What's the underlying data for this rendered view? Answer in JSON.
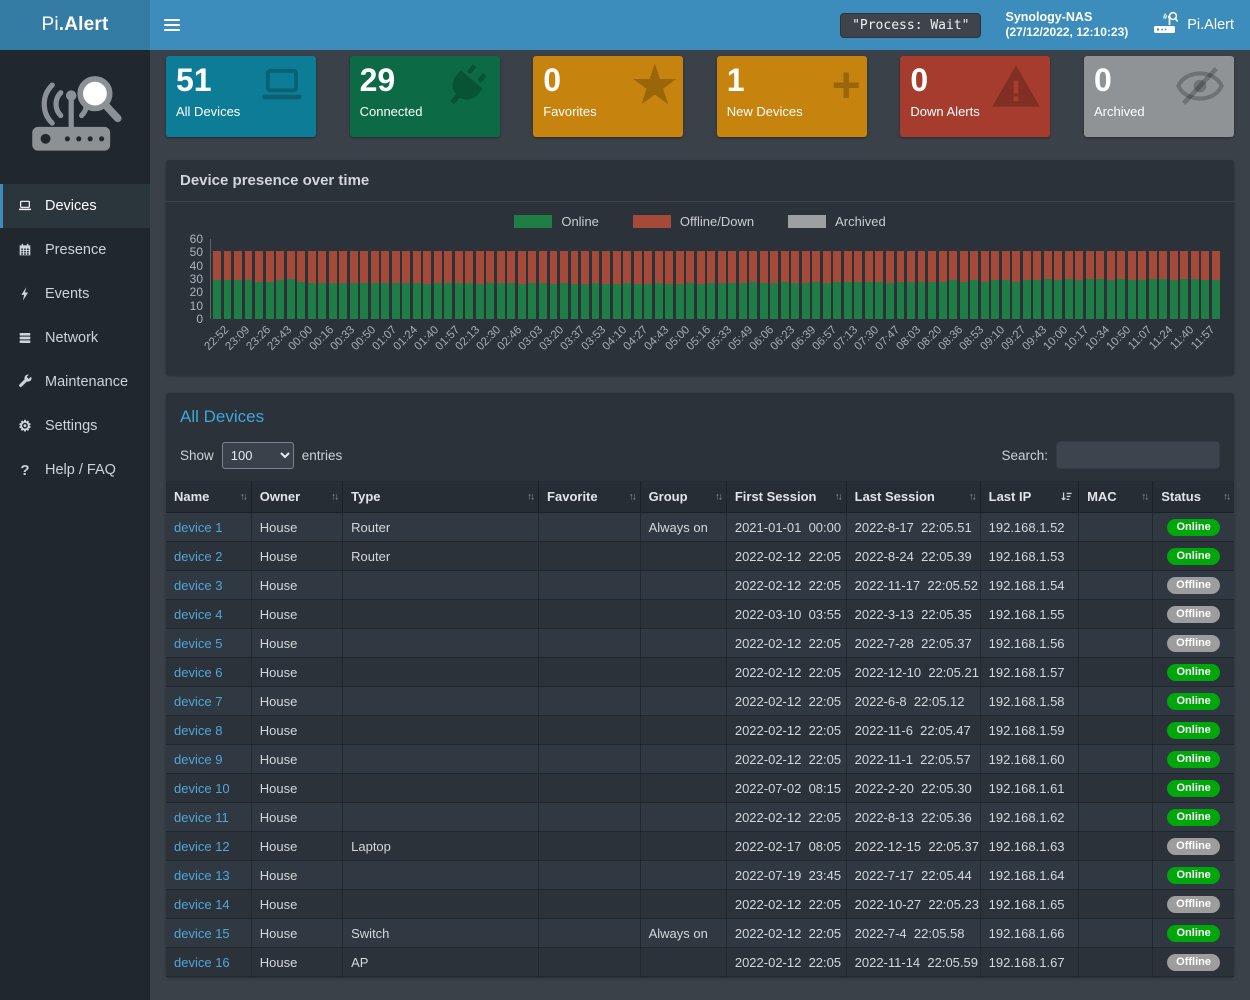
{
  "header": {
    "brand_prefix": "Pi",
    "brand_suffix": ".Alert",
    "process_status": "\"Process: Wait\"",
    "host": {
      "name": "Synology-NAS",
      "datetime": "(27/12/2022, 12:10:23)"
    },
    "user_label": "Pi.Alert"
  },
  "sidebar": {
    "items": [
      {
        "label": "Devices",
        "icon": "laptop-icon",
        "active": true
      },
      {
        "label": "Presence",
        "icon": "calendar-icon",
        "active": false
      },
      {
        "label": "Events",
        "icon": "bolt-icon",
        "active": false
      },
      {
        "label": "Network",
        "icon": "network-icon",
        "active": false
      },
      {
        "label": "Maintenance",
        "icon": "wrench-icon",
        "active": false
      },
      {
        "label": "Settings",
        "icon": "gear-icon",
        "active": false
      },
      {
        "label": "Help / FAQ",
        "icon": "question-icon",
        "active": false
      }
    ]
  },
  "page_title": "Devices",
  "summary_cards": [
    {
      "value": "51",
      "label": "All Devices",
      "color": "#0d7d97",
      "icon": "laptop-icon"
    },
    {
      "value": "29",
      "label": "Connected",
      "color": "#0c6b45",
      "icon": "plug-icon"
    },
    {
      "value": "0",
      "label": "Favorites",
      "color": "#c6830d",
      "icon": "star-icon"
    },
    {
      "value": "1",
      "label": "New Devices",
      "color": "#c6830d",
      "icon": "plus-icon"
    },
    {
      "value": "0",
      "label": "Down Alerts",
      "color": "#a63c2e",
      "icon": "warning-icon"
    },
    {
      "value": "0",
      "label": "Archived",
      "color": "#8f9396",
      "icon": "eye-slash-icon"
    }
  ],
  "chart_panel": {
    "title": "Device presence over time"
  },
  "chart_data": {
    "type": "bar",
    "stacked": true,
    "title": "Device presence over time",
    "ylim": [
      0,
      60
    ],
    "yticks": [
      "60",
      "50",
      "40",
      "30",
      "20",
      "10",
      "0"
    ],
    "legend_position": "top-center",
    "grid": false,
    "bars_per_label": 2,
    "x_labels": [
      "22:52",
      "23:09",
      "23:26",
      "23:43",
      "00:00",
      "00:16",
      "00:33",
      "00:50",
      "01:07",
      "01:24",
      "01:40",
      "01:57",
      "02:13",
      "02:30",
      "02:46",
      "03:03",
      "03:20",
      "03:37",
      "03:53",
      "04:10",
      "04:27",
      "04:43",
      "05:00",
      "05:16",
      "05:33",
      "05:49",
      "06:06",
      "06:23",
      "06:39",
      "06:57",
      "07:13",
      "07:30",
      "07:47",
      "08:03",
      "08:20",
      "08:36",
      "08:53",
      "09:10",
      "09:27",
      "09:43",
      "10:00",
      "10:17",
      "10:34",
      "10:50",
      "11:07",
      "11:24",
      "11:40",
      "11:57"
    ],
    "legend": [
      {
        "name": "Online",
        "color": "#1e7e45"
      },
      {
        "name": "Offline/Down",
        "color": "#a54a39"
      },
      {
        "name": "Archived",
        "color": "#9da0a2"
      }
    ],
    "series": [
      {
        "name": "Online",
        "values": [
          29,
          29,
          29,
          29,
          28,
          28,
          29,
          30,
          28,
          27,
          27,
          27,
          27,
          27,
          27,
          27,
          27,
          27,
          27,
          27,
          26,
          27,
          27,
          27,
          27,
          26,
          27,
          27,
          27,
          26,
          27,
          27,
          26,
          27,
          26,
          26,
          27,
          26,
          26,
          27,
          26,
          26,
          27,
          26,
          26,
          27,
          26,
          27,
          27,
          27,
          27,
          28,
          27,
          27,
          28,
          27,
          27,
          28,
          27,
          28,
          28,
          28,
          28,
          28,
          27,
          28,
          28,
          28,
          28,
          28,
          29,
          28,
          29,
          28,
          29,
          29,
          28,
          29,
          29,
          30,
          29,
          30,
          29,
          30,
          30,
          29,
          30,
          29,
          29,
          30,
          30,
          29,
          30,
          30,
          29,
          29
        ]
      },
      {
        "name": "Offline/Down",
        "values": [
          22,
          22,
          22,
          22,
          23,
          23,
          22,
          21,
          23,
          24,
          24,
          24,
          24,
          24,
          24,
          24,
          24,
          24,
          24,
          24,
          25,
          24,
          24,
          24,
          24,
          25,
          24,
          24,
          24,
          25,
          24,
          24,
          25,
          24,
          25,
          25,
          24,
          25,
          25,
          24,
          25,
          25,
          24,
          25,
          25,
          24,
          25,
          24,
          24,
          24,
          24,
          23,
          24,
          24,
          23,
          24,
          24,
          23,
          24,
          23,
          23,
          23,
          23,
          23,
          24,
          23,
          23,
          23,
          23,
          23,
          22,
          23,
          22,
          23,
          22,
          22,
          23,
          22,
          22,
          21,
          22,
          21,
          22,
          21,
          21,
          22,
          21,
          22,
          22,
          21,
          21,
          22,
          21,
          21,
          22,
          22
        ]
      },
      {
        "name": "Archived",
        "values": [
          0,
          0,
          0,
          0,
          0,
          0,
          0,
          0,
          0,
          0,
          0,
          0,
          0,
          0,
          0,
          0,
          0,
          0,
          0,
          0,
          0,
          0,
          0,
          0,
          0,
          0,
          0,
          0,
          0,
          0,
          0,
          0,
          0,
          0,
          0,
          0,
          0,
          0,
          0,
          0,
          0,
          0,
          0,
          0,
          0,
          0,
          0,
          0,
          0,
          0,
          0,
          0,
          0,
          0,
          0,
          0,
          0,
          0,
          0,
          0,
          0,
          0,
          0,
          0,
          0,
          0,
          0,
          0,
          0,
          0,
          0,
          0,
          0,
          0,
          0,
          0,
          0,
          0,
          0,
          0,
          0,
          0,
          0,
          0,
          0,
          0,
          0,
          0,
          0,
          0,
          0,
          0,
          0,
          0,
          0,
          0
        ]
      }
    ]
  },
  "devices_table": {
    "title": "All Devices",
    "show_label": "Show",
    "entries_label": "entries",
    "page_length": "100",
    "search_label": "Search:",
    "search_value": "",
    "columns": [
      {
        "label": "Name",
        "sort": "both"
      },
      {
        "label": "Owner",
        "sort": "both"
      },
      {
        "label": "Type",
        "sort": "both"
      },
      {
        "label": "Favorite",
        "sort": "both"
      },
      {
        "label": "Group",
        "sort": "both"
      },
      {
        "label": "First Session",
        "sort": "both"
      },
      {
        "label": "Last Session",
        "sort": "both"
      },
      {
        "label": "Last IP",
        "sort": "amount"
      },
      {
        "label": "MAC",
        "sort": "both"
      },
      {
        "label": "Status",
        "sort": "both"
      }
    ],
    "rows": [
      [
        "device 1",
        "House",
        "Router",
        "",
        "Always on",
        "2021-01-01  00:00",
        "2022-8-17  22:05.51",
        "192.168.1.52",
        "",
        "Online"
      ],
      [
        "device 2",
        "House",
        "Router",
        "",
        "",
        "2022-02-12  22:05",
        "2022-8-24  22:05.39",
        "192.168.1.53",
        "",
        "Online"
      ],
      [
        "device 3",
        "House",
        "",
        "",
        "",
        "2022-02-12  22:05",
        "2022-11-17  22:05.52",
        "192.168.1.54",
        "",
        "Offline"
      ],
      [
        "device 4",
        "House",
        "",
        "",
        "",
        "2022-03-10  03:55",
        "2022-3-13  22:05.35",
        "192.168.1.55",
        "",
        "Offline"
      ],
      [
        "device 5",
        "House",
        "",
        "",
        "",
        "2022-02-12  22:05",
        "2022-7-28  22:05.37",
        "192.168.1.56",
        "",
        "Offline"
      ],
      [
        "device 6",
        "House",
        "",
        "",
        "",
        "2022-02-12  22:05",
        "2022-12-10  22:05.21",
        "192.168.1.57",
        "",
        "Online"
      ],
      [
        "device 7",
        "House",
        "",
        "",
        "",
        "2022-02-12  22:05",
        "2022-6-8  22:05.12",
        "192.168.1.58",
        "",
        "Online"
      ],
      [
        "device 8",
        "House",
        "",
        "",
        "",
        "2022-02-12  22:05",
        "2022-11-6  22:05.47",
        "192.168.1.59",
        "",
        "Online"
      ],
      [
        "device 9",
        "House",
        "",
        "",
        "",
        "2022-02-12  22:05",
        "2022-11-1  22:05.57",
        "192.168.1.60",
        "",
        "Online"
      ],
      [
        "device 10",
        "House",
        "",
        "",
        "",
        "2022-07-02  08:15",
        "2022-2-20  22:05.30",
        "192.168.1.61",
        "",
        "Online"
      ],
      [
        "device 11",
        "House",
        "",
        "",
        "",
        "2022-02-12  22:05",
        "2022-8-13  22:05.36",
        "192.168.1.62",
        "",
        "Online"
      ],
      [
        "device 12",
        "House",
        "Laptop",
        "",
        "",
        "2022-02-17  08:05",
        "2022-12-15  22:05.37",
        "192.168.1.63",
        "",
        "Offline"
      ],
      [
        "device 13",
        "House",
        "",
        "",
        "",
        "2022-07-19  23:45",
        "2022-7-17  22:05.44",
        "192.168.1.64",
        "",
        "Online"
      ],
      [
        "device 14",
        "House",
        "",
        "",
        "",
        "2022-02-12  22:05",
        "2022-10-27  22:05.23",
        "192.168.1.65",
        "",
        "Offline"
      ],
      [
        "device 15",
        "House",
        "Switch",
        "",
        "Always on",
        "2022-02-12  22:05",
        "2022-7-4  22:05.58",
        "192.168.1.66",
        "",
        "Online"
      ],
      [
        "device 16",
        "House",
        "AP",
        "",
        "",
        "2022-02-12  22:05",
        "2022-11-14  22:05.59",
        "192.168.1.67",
        "",
        "Offline"
      ]
    ],
    "status_colors": {
      "Online": "#00a70b",
      "Offline": "#9d9d9d"
    }
  }
}
